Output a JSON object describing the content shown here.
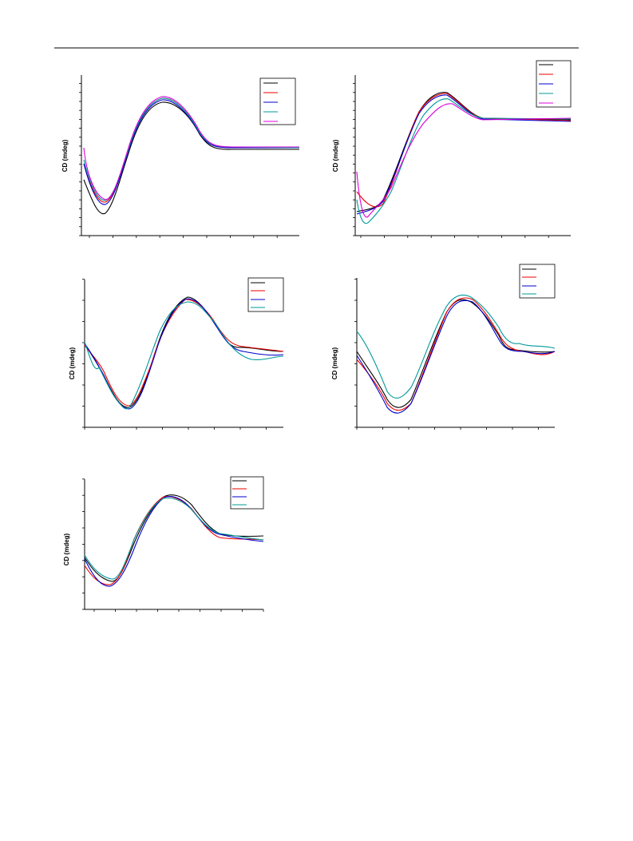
{
  "panels": [
    {
      "y_label": "CD (mdeg)"
    },
    {
      "y_label": "CD (mdeg)"
    },
    {
      "y_label": "CD (mdeg)"
    },
    {
      "y_label": "CD (mdeg)"
    },
    {
      "y_label": "CD (mdeg)"
    }
  ]
}
